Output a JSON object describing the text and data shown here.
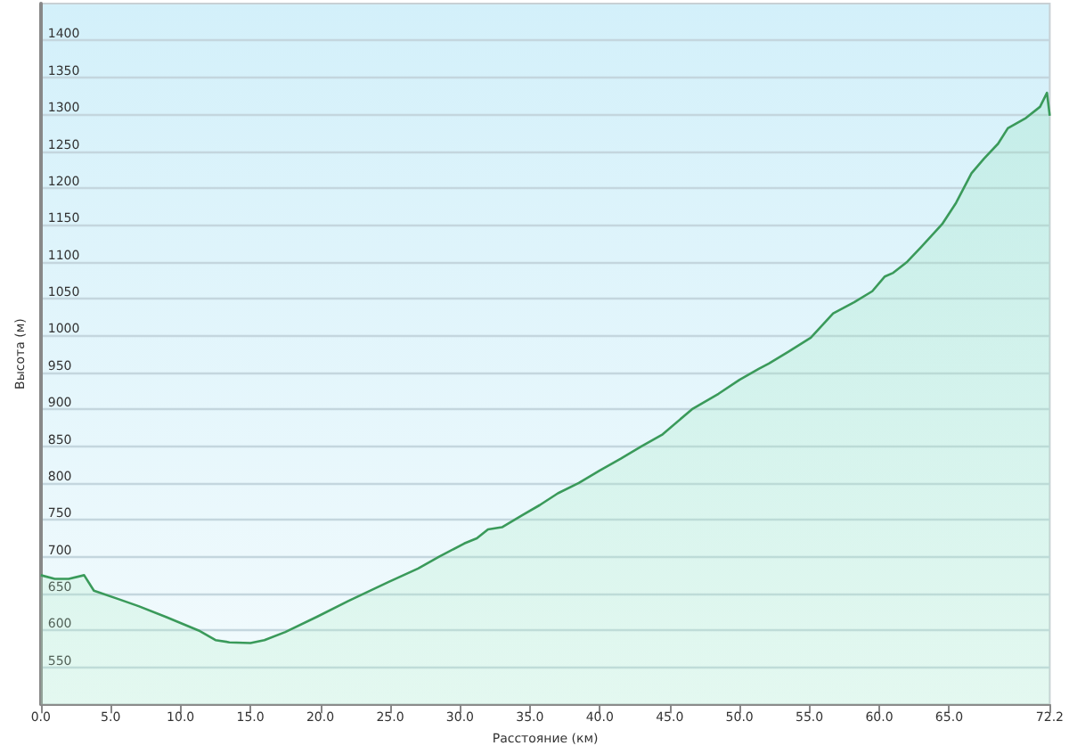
{
  "chart_data": {
    "type": "area",
    "xlabel": "Расстояние (км)",
    "ylabel": "Высота (м)",
    "xlim": [
      0,
      72.2
    ],
    "ylim": [
      500,
      1450
    ],
    "xticks": [
      {
        "value": 0,
        "label": "0.0"
      },
      {
        "value": 5,
        "label": "5.0"
      },
      {
        "value": 10,
        "label": "10.0"
      },
      {
        "value": 15,
        "label": "15.0"
      },
      {
        "value": 20,
        "label": "20.0"
      },
      {
        "value": 25,
        "label": "25.0"
      },
      {
        "value": 30,
        "label": "30.0"
      },
      {
        "value": 35,
        "label": "35.0"
      },
      {
        "value": 40,
        "label": "40.0"
      },
      {
        "value": 45,
        "label": "45.0"
      },
      {
        "value": 50,
        "label": "50.0"
      },
      {
        "value": 55,
        "label": "55.0"
      },
      {
        "value": 60,
        "label": "60.0"
      },
      {
        "value": 65,
        "label": "65.0"
      },
      {
        "value": 72.2,
        "label": "72.2"
      }
    ],
    "yticks": [
      550,
      600,
      650,
      700,
      750,
      800,
      850,
      900,
      950,
      1000,
      1050,
      1100,
      1150,
      1200,
      1250,
      1300,
      1350,
      1400
    ],
    "grid": "y",
    "marker": "none",
    "series": [
      {
        "color": "#3a9a5a",
        "x": [
          0,
          1,
          2,
          3.1,
          3.8,
          5.5,
          7,
          9,
          11.3,
          12.5,
          13.5,
          15,
          16,
          17.5,
          19.8,
          22,
          24.9,
          27,
          28.5,
          30.3,
          31.2,
          32,
          33,
          34.5,
          35.7,
          37,
          38.5,
          40,
          41.5,
          43,
          44.5,
          46.6,
          48.5,
          50,
          51.4,
          52.1,
          53.5,
          55.1,
          56.7,
          58.2,
          59.5,
          60.4,
          61,
          62,
          63,
          64.5,
          65.5,
          66.6,
          67.5,
          68.5,
          69.2,
          70.5,
          71.5,
          72,
          72.2
        ],
        "values": [
          675,
          670,
          670,
          675,
          654,
          643,
          633,
          618,
          600,
          587,
          584,
          583,
          587,
          598,
          619,
          640,
          666,
          684,
          700,
          718,
          725,
          737,
          740,
          757,
          770,
          786,
          800,
          817,
          833,
          850,
          866,
          900,
          921,
          940,
          955,
          962,
          978,
          997,
          1030,
          1045,
          1060,
          1080,
          1085,
          1100,
          1120,
          1151,
          1180,
          1220,
          1240,
          1260,
          1281,
          1295,
          1310,
          1329,
          1298
        ]
      }
    ]
  }
}
